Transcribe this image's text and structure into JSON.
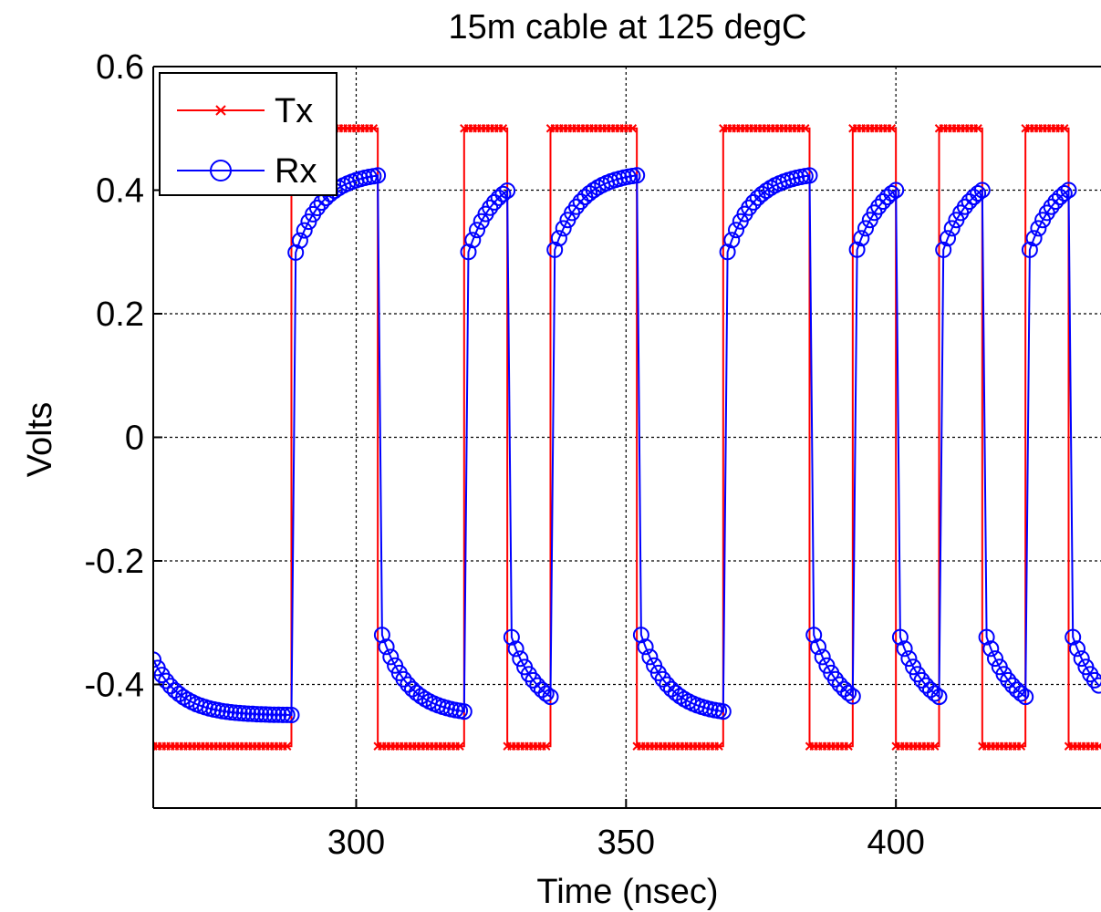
{
  "chart_data": {
    "type": "line",
    "title": "15m cable at 125 degC",
    "xlabel": "Time (nsec)",
    "ylabel": "Volts",
    "xlim": [
      262.4,
      438
    ],
    "ylim": [
      -0.6,
      0.6
    ],
    "xticks": [
      300,
      350,
      400
    ],
    "yticks": [
      0.6,
      0.4,
      0.2,
      0,
      -0.2,
      -0.4
    ],
    "ytick_labels": [
      "0.6",
      "0.4",
      "0.2",
      "0",
      "-0.2",
      "-0.4"
    ],
    "xtick_labels": [
      "300",
      "350",
      "400"
    ],
    "grid": true,
    "legend_position": "top-left",
    "sample_step_ns": 0.8,
    "series": [
      {
        "name": "Tx",
        "color": "#ff0000",
        "marker": "x",
        "low": -0.5,
        "high": 0.5,
        "transitions": [
          {
            "t": 288,
            "level": 0.5
          },
          {
            "t": 304,
            "level": -0.5
          },
          {
            "t": 320,
            "level": 0.5
          },
          {
            "t": 328,
            "level": -0.5
          },
          {
            "t": 336,
            "level": 0.5
          },
          {
            "t": 352,
            "level": -0.5
          },
          {
            "t": 368,
            "level": 0.5
          },
          {
            "t": 384,
            "level": -0.5
          },
          {
            "t": 392,
            "level": 0.5
          },
          {
            "t": 400,
            "level": -0.5
          },
          {
            "t": 408,
            "level": 0.5
          },
          {
            "t": 416,
            "level": -0.5
          },
          {
            "t": 424,
            "level": 0.5
          },
          {
            "t": 432,
            "level": -0.5
          }
        ]
      },
      {
        "name": "Rx",
        "color": "#0000ff",
        "marker": "circle",
        "start_value": -0.36,
        "response_delay_ns": 0.5,
        "time_constants_ns": {
          "rise": 5,
          "fall": 5
        },
        "edge_duration_ns": 1.2
      }
    ]
  }
}
